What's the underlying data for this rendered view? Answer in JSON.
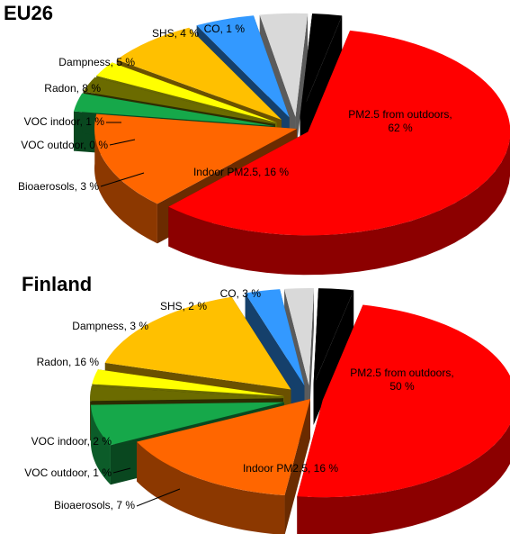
{
  "chart_data": [
    {
      "type": "pie",
      "title": "EU26",
      "slices": [
        {
          "label": "PM2.5 from outdoors, 62 %",
          "value": 62,
          "color": "#ff0000"
        },
        {
          "label": "Indoor PM2.5, 16 %",
          "value": 16,
          "color": "#ff6600"
        },
        {
          "label": "Bioaerosols, 3 %",
          "value": 3,
          "color": "#16a84a"
        },
        {
          "label": "VOC outdoor, 0 %",
          "value": 0,
          "color": "#6b6b00"
        },
        {
          "label": "VOC indoor, 1 %",
          "value": 1,
          "color": "#ffff00"
        },
        {
          "label": "Radon, 8 %",
          "value": 8,
          "color": "#ffc000"
        },
        {
          "label": "Dampness, 5 %",
          "value": 5,
          "color": "#3399ff"
        },
        {
          "label": "SHS, 4 %",
          "value": 4,
          "color": "#d9d9d9"
        },
        {
          "label": "CO, 1 %",
          "value": 1,
          "color": "#000000"
        }
      ]
    },
    {
      "type": "pie",
      "title": "Finland",
      "slices": [
        {
          "label": "PM2.5 from outdoors, 50 %",
          "value": 50,
          "color": "#ff0000"
        },
        {
          "label": "Indoor PM2.5, 16 %",
          "value": 16,
          "color": "#ff6600"
        },
        {
          "label": "Bioaerosols, 7 %",
          "value": 7,
          "color": "#16a84a"
        },
        {
          "label": "VOC outdoor, 1 %",
          "value": 1,
          "color": "#6b6b00"
        },
        {
          "label": "VOC indoor, 2 %",
          "value": 2,
          "color": "#ffff00"
        },
        {
          "label": "Radon, 16 %",
          "value": 16,
          "color": "#ffc000"
        },
        {
          "label": "Dampness, 3 %",
          "value": 3,
          "color": "#3399ff"
        },
        {
          "label": "SHS, 2 %",
          "value": 2,
          "color": "#d9d9d9"
        },
        {
          "label": "CO, 3 %",
          "value": 3,
          "color": "#000000"
        }
      ]
    }
  ]
}
